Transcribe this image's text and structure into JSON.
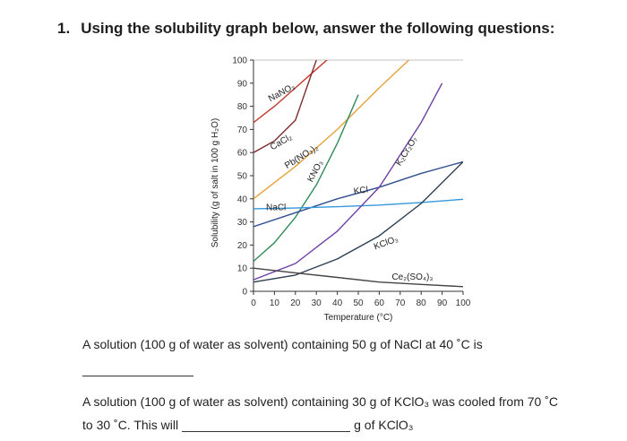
{
  "question": {
    "number": "1.",
    "prompt": "Using the solubility graph below, answer the following questions:"
  },
  "chart_data": {
    "type": "line",
    "xlabel": "Temperature (°C)",
    "ylabel": "Solubility (g of salt in 100 g H₂O)",
    "xlim": [
      0,
      100
    ],
    "ylim": [
      0,
      100
    ],
    "x_ticks": [
      0,
      10,
      20,
      30,
      40,
      50,
      60,
      70,
      80,
      90,
      100
    ],
    "y_ticks": [
      0,
      10,
      20,
      30,
      40,
      50,
      60,
      70,
      80,
      90,
      100
    ],
    "x_tick_labels": [
      "0",
      "10",
      "20",
      "30",
      "40",
      "50",
      "60",
      "70",
      "80",
      "90",
      "100"
    ],
    "y_tick_labels": [
      "0",
      "10",
      "20",
      "30",
      "40",
      "50",
      "60",
      "70",
      "80",
      "90",
      "100"
    ],
    "grid": false,
    "series": [
      {
        "name": "NaNO₃",
        "color": "#c0392b",
        "x": [
          0,
          10,
          20,
          30,
          40
        ],
        "y": [
          73,
          80,
          88,
          96,
          104
        ]
      },
      {
        "name": "CaCl₂",
        "color": "#7f2d2d",
        "x": [
          0,
          10,
          20,
          30
        ],
        "y": [
          60,
          65,
          74,
          100
        ]
      },
      {
        "name": "Pb(NO₃)₂",
        "color": "#e6a23c",
        "x": [
          0,
          20,
          40,
          60,
          80,
          90
        ],
        "y": [
          40,
          54,
          70,
          88,
          105,
          110
        ]
      },
      {
        "name": "KNO₃",
        "color": "#2e8b57",
        "x": [
          0,
          10,
          20,
          30,
          40,
          50
        ],
        "y": [
          13,
          21,
          32,
          46,
          64,
          85
        ]
      },
      {
        "name": "KCl",
        "color": "#2f4f8f",
        "x": [
          0,
          20,
          40,
          60,
          80,
          100
        ],
        "y": [
          28,
          34,
          40,
          45,
          51,
          56
        ]
      },
      {
        "name": "NaCl",
        "color": "#3498db",
        "x": [
          0,
          20,
          40,
          60,
          80,
          100
        ],
        "y": [
          35.7,
          36,
          36.6,
          37.3,
          38.4,
          39.8
        ]
      },
      {
        "name": "K₂Cr₂O₇",
        "color": "#6d3fa6",
        "x": [
          0,
          20,
          40,
          60,
          80,
          90
        ],
        "y": [
          5,
          12,
          26,
          45,
          73,
          90
        ]
      },
      {
        "name": "KClO₃",
        "color": "#2c3e50",
        "x": [
          0,
          20,
          40,
          60,
          80,
          100
        ],
        "y": [
          4,
          7,
          14,
          24,
          38,
          56
        ]
      },
      {
        "name": "Ce₂(SO₄)₃",
        "color": "#444444",
        "x": [
          0,
          20,
          40,
          60,
          80,
          100
        ],
        "y": [
          10,
          8,
          6,
          4,
          3,
          2
        ]
      }
    ],
    "label_anchors": [
      {
        "name": "NaNO₃",
        "x": 8,
        "y": 82,
        "angle": -28
      },
      {
        "name": "CaCl₂",
        "x": 9,
        "y": 61,
        "angle": -30
      },
      {
        "name": "Pb(NO₃)₂",
        "x": 16,
        "y": 53,
        "angle": -32
      },
      {
        "name": "KNO₃",
        "x": 28,
        "y": 47,
        "angle": -62
      },
      {
        "name": "KCl",
        "x": 48,
        "y": 42,
        "angle": -8
      },
      {
        "name": "NaCl",
        "x": 6,
        "y": 35,
        "angle": 0
      },
      {
        "name": "K₂Cr₂O₇",
        "x": 70,
        "y": 54,
        "angle": -58
      },
      {
        "name": "KClO₃",
        "x": 58,
        "y": 18,
        "angle": -20
      },
      {
        "name": "Ce₂(SO₄)₃",
        "x": 66,
        "y": 5,
        "angle": 0
      }
    ]
  },
  "questions": [
    {
      "text": "A solution (100 g of water as solvent) containing 50 g of NaCl at 40 ˚C is"
    },
    {
      "text_line1": "A solution (100 g of water as solvent) containing 30 g of KClO₃ was cooled from 70 ˚C",
      "text_line2_start": "to 30 ˚C. This will",
      "text_line2_end": "g of KClO₃"
    }
  ]
}
